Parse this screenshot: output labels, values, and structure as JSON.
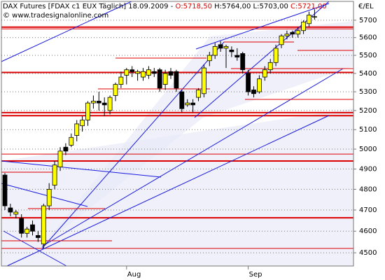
{
  "chart_data": {
    "type": "candlestick",
    "title": "DAX Futures [FDAX c1 EUX  Täglich] 18.09.2009 -",
    "open_label": "O:5718,50",
    "high_low_label": "H:5764,00 L:5703,00",
    "close_label": "C:5721,00",
    "subtitle": "© www.tradesignalonline.com",
    "y_axis_label": "€/EL",
    "log_scale": true,
    "grid": true,
    "up_color": "#ffff00",
    "down_color": "#000000",
    "level_color": "#dd0000",
    "categories": [
      null,
      null,
      null,
      null,
      null,
      null,
      null,
      null,
      null,
      null,
      null,
      null,
      null,
      null,
      null,
      null,
      null,
      null,
      null,
      null,
      null,
      null,
      "Aug",
      null,
      null,
      null,
      null,
      null,
      null,
      null,
      null,
      null,
      null,
      null,
      null,
      null,
      null,
      null,
      null,
      null,
      null,
      null,
      null,
      null,
      "Sep",
      null,
      null,
      null,
      null,
      null,
      null,
      null,
      null,
      null,
      null,
      null,
      null
    ],
    "open": [
      4870,
      4710,
      4680,
      4660,
      4590,
      4630,
      4580,
      4540,
      4720,
      4820,
      4910,
      5010,
      5020,
      5070,
      5120,
      5150,
      5240,
      5250,
      5240,
      5200,
      5280,
      5340,
      5390,
      5420,
      5400,
      5380,
      5390,
      5410,
      5420,
      5340,
      5410,
      5410,
      5300,
      5230,
      5240,
      5270,
      5290,
      5470,
      5500,
      5560,
      5540,
      5530,
      5500,
      5510,
      5400,
      5310,
      5300,
      5380,
      5420,
      5460,
      5560,
      5610,
      5630,
      5620,
      5640,
      5680,
      5718.5
    ],
    "high": [
      4880,
      4730,
      4700,
      4680,
      4620,
      4650,
      4600,
      4730,
      4830,
      4940,
      5010,
      5030,
      5080,
      5150,
      5170,
      5250,
      5280,
      5300,
      5270,
      5280,
      5350,
      5410,
      5430,
      5440,
      5420,
      5430,
      5440,
      5430,
      5430,
      5420,
      5430,
      5420,
      5310,
      5260,
      5260,
      5320,
      5450,
      5520,
      5570,
      5580,
      5560,
      5550,
      5540,
      5520,
      5420,
      5330,
      5390,
      5440,
      5480,
      5560,
      5620,
      5640,
      5640,
      5660,
      5700,
      5750,
      5764
    ],
    "low": [
      4700,
      4670,
      4660,
      4570,
      4570,
      4580,
      4550,
      4520,
      4700,
      4800,
      4890,
      4970,
      5010,
      5040,
      5090,
      5120,
      5210,
      5200,
      5170,
      5180,
      5250,
      5320,
      5340,
      5380,
      5360,
      5360,
      5370,
      5380,
      5300,
      5310,
      5370,
      5300,
      5190,
      5220,
      5190,
      5250,
      5270,
      5440,
      5480,
      5520,
      5430,
      5490,
      5470,
      5400,
      5280,
      5270,
      5290,
      5360,
      5400,
      5440,
      5540,
      5590,
      5600,
      5600,
      5620,
      5660,
      5703
    ],
    "close": [
      4720,
      4690,
      4690,
      4590,
      4610,
      4600,
      4570,
      4720,
      4800,
      4920,
      4990,
      4990,
      5060,
      5130,
      5150,
      5240,
      5250,
      5240,
      5230,
      5270,
      5340,
      5380,
      5420,
      5410,
      5410,
      5410,
      5420,
      5400,
      5320,
      5400,
      5390,
      5320,
      5210,
      5240,
      5230,
      5310,
      5430,
      5500,
      5550,
      5540,
      5550,
      5520,
      5490,
      5420,
      5300,
      5290,
      5370,
      5420,
      5460,
      5540,
      5610,
      5620,
      5620,
      5640,
      5690,
      5730,
      5721
    ],
    "major_levels": [
      5660,
      5405,
      5189,
      5173,
      4940,
      4663
    ],
    "minor_levels": [
      5650,
      4975,
      4520
    ],
    "ylim": [
      4440,
      5810
    ],
    "yticks": [
      4500,
      4600,
      4700,
      4800,
      4900,
      5000,
      5100,
      5200,
      5300,
      5400,
      5500,
      5600,
      5700
    ]
  }
}
